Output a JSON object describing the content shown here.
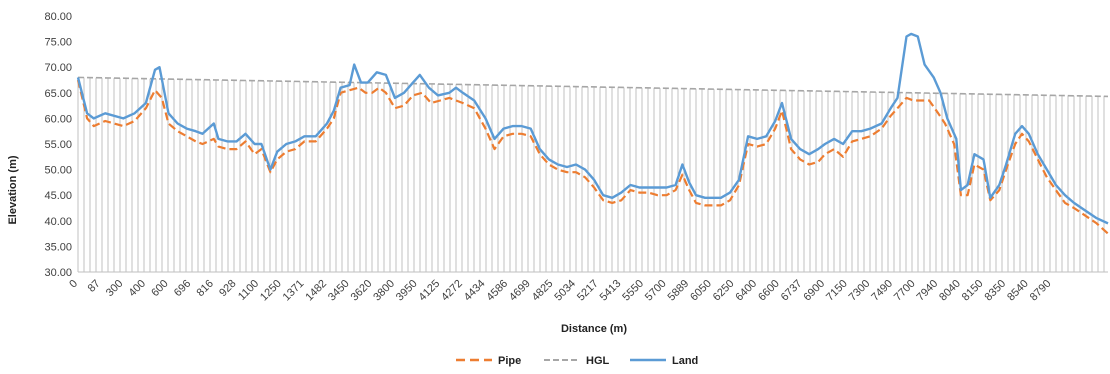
{
  "chart_data": {
    "type": "line",
    "xlabel": "Distance (m)",
    "ylabel": "Elevation (m)",
    "ylim": [
      30,
      80
    ],
    "yticks": [
      "30.00",
      "35.00",
      "40.00",
      "45.00",
      "50.00",
      "55.00",
      "60.00",
      "65.00",
      "70.00",
      "75.00",
      "80.00"
    ],
    "grid": false,
    "legend_position": "bottom",
    "hgl_fill": "vertical hatch from HGL down to axis",
    "x_labels": [
      "0",
      "87",
      "300",
      "400",
      "600",
      "696",
      "816",
      "928",
      "1100",
      "1250",
      "1371",
      "1482",
      "3450",
      "3620",
      "3800",
      "3950",
      "4125",
      "4272",
      "4434",
      "4586",
      "4699",
      "4825",
      "5034",
      "5217",
      "5413",
      "5550",
      "5700",
      "5889",
      "6050",
      "6250",
      "6400",
      "6600",
      "6737",
      "6900",
      "7150",
      "7300",
      "7490",
      "7700",
      "7940",
      "8040",
      "8150",
      "8350",
      "8540",
      "8790"
    ],
    "series": [
      {
        "name": "Pipe",
        "color": "#ED7D31",
        "style": "dashed",
        "points": [
          [
            0,
            67.5
          ],
          [
            0.4,
            60
          ],
          [
            0.7,
            58.5
          ],
          [
            1.2,
            59.5
          ],
          [
            2,
            58.5
          ],
          [
            2.5,
            59.5
          ],
          [
            3,
            62
          ],
          [
            3.4,
            65.5
          ],
          [
            3.7,
            64
          ],
          [
            4,
            59
          ],
          [
            4.4,
            57.5
          ],
          [
            4.8,
            56.5
          ],
          [
            5.2,
            55.5
          ],
          [
            5.5,
            55
          ],
          [
            6,
            56
          ],
          [
            6.2,
            54.5
          ],
          [
            6.6,
            54
          ],
          [
            7,
            54
          ],
          [
            7.4,
            55.5
          ],
          [
            7.8,
            53
          ],
          [
            8.1,
            54
          ],
          [
            8.5,
            49.5
          ],
          [
            8.8,
            52
          ],
          [
            9.2,
            53.5
          ],
          [
            9.6,
            54
          ],
          [
            10,
            55.5
          ],
          [
            10.5,
            55.5
          ],
          [
            11,
            58
          ],
          [
            11.3,
            60
          ],
          [
            11.6,
            65
          ],
          [
            12,
            65.5
          ],
          [
            12.4,
            66
          ],
          [
            12.7,
            65
          ],
          [
            13,
            65
          ],
          [
            13.3,
            66
          ],
          [
            13.6,
            65
          ],
          [
            14,
            62
          ],
          [
            14.4,
            62.5
          ],
          [
            14.8,
            64.5
          ],
          [
            15.2,
            65
          ],
          [
            15.6,
            63
          ],
          [
            16,
            63.5
          ],
          [
            16.4,
            64
          ],
          [
            16.7,
            63.5
          ],
          [
            17,
            63
          ],
          [
            17.5,
            62
          ],
          [
            18,
            58
          ],
          [
            18.4,
            54
          ],
          [
            18.8,
            56.5
          ],
          [
            19.2,
            57
          ],
          [
            19.6,
            57
          ],
          [
            20,
            56.5
          ],
          [
            20.4,
            53
          ],
          [
            20.8,
            51
          ],
          [
            21.2,
            50
          ],
          [
            21.6,
            49.5
          ],
          [
            22,
            49.5
          ],
          [
            22.4,
            48.5
          ],
          [
            22.8,
            46.5
          ],
          [
            23.2,
            44
          ],
          [
            23.6,
            43.5
          ],
          [
            24,
            44
          ],
          [
            24.4,
            46
          ],
          [
            24.8,
            45.5
          ],
          [
            25.2,
            45.5
          ],
          [
            25.6,
            45
          ],
          [
            26,
            45
          ],
          [
            26.4,
            46
          ],
          [
            26.7,
            49
          ],
          [
            27,
            46
          ],
          [
            27.3,
            43.5
          ],
          [
            27.7,
            43
          ],
          [
            28,
            43
          ],
          [
            28.4,
            43
          ],
          [
            28.8,
            44
          ],
          [
            29.2,
            47
          ],
          [
            29.6,
            55
          ],
          [
            30,
            54.5
          ],
          [
            30.4,
            55
          ],
          [
            30.8,
            58
          ],
          [
            31.1,
            61.5
          ],
          [
            31.5,
            54
          ],
          [
            31.9,
            52
          ],
          [
            32.3,
            51
          ],
          [
            32.7,
            51.5
          ],
          [
            33,
            53
          ],
          [
            33.4,
            54
          ],
          [
            33.8,
            52.5
          ],
          [
            34.2,
            55.5
          ],
          [
            34.6,
            56
          ],
          [
            35,
            56.5
          ],
          [
            35.5,
            58
          ],
          [
            35.9,
            60.5
          ],
          [
            36.2,
            62
          ],
          [
            36.6,
            64
          ],
          [
            36.9,
            63.5
          ],
          [
            37.2,
            63.5
          ],
          [
            37.6,
            63.5
          ],
          [
            38,
            61
          ],
          [
            38.3,
            59
          ],
          [
            38.7,
            55
          ],
          [
            39,
            45
          ],
          [
            39.3,
            45
          ],
          [
            39.6,
            51
          ],
          [
            40,
            50
          ],
          [
            40.3,
            44
          ],
          [
            40.7,
            46
          ],
          [
            41,
            50
          ],
          [
            41.4,
            55
          ],
          [
            41.7,
            57
          ],
          [
            42,
            55.5
          ],
          [
            42.4,
            52
          ],
          [
            42.8,
            48.5
          ],
          [
            43.2,
            46
          ],
          [
            43.6,
            43.5
          ],
          [
            44,
            42.5
          ],
          [
            44.5,
            41
          ],
          [
            45,
            39.5
          ],
          [
            45.5,
            37.5
          ]
        ]
      },
      {
        "name": "HGL",
        "color": "#A6A6A6",
        "style": "dashed",
        "points": [
          [
            0,
            68
          ],
          [
            45.5,
            64.3
          ]
        ]
      },
      {
        "name": "Land",
        "color": "#5B9BD5",
        "style": "solid",
        "points": [
          [
            0,
            68
          ],
          [
            0.4,
            61
          ],
          [
            0.7,
            60
          ],
          [
            1.2,
            61
          ],
          [
            2,
            60
          ],
          [
            2.5,
            61
          ],
          [
            3,
            63
          ],
          [
            3.4,
            69.5
          ],
          [
            3.6,
            70
          ],
          [
            4,
            61
          ],
          [
            4.4,
            59
          ],
          [
            4.8,
            58
          ],
          [
            5.2,
            57.5
          ],
          [
            5.5,
            57
          ],
          [
            6,
            59
          ],
          [
            6.2,
            56
          ],
          [
            6.6,
            55.5
          ],
          [
            7,
            55.5
          ],
          [
            7.4,
            57
          ],
          [
            7.8,
            55
          ],
          [
            8.1,
            55
          ],
          [
            8.5,
            50
          ],
          [
            8.8,
            53.5
          ],
          [
            9.2,
            55
          ],
          [
            9.6,
            55.5
          ],
          [
            10,
            56.5
          ],
          [
            10.5,
            56.5
          ],
          [
            11,
            59
          ],
          [
            11.3,
            61.5
          ],
          [
            11.6,
            66
          ],
          [
            12,
            66.5
          ],
          [
            12.2,
            70.5
          ],
          [
            12.5,
            67
          ],
          [
            12.8,
            67
          ],
          [
            13.2,
            69
          ],
          [
            13.6,
            68.5
          ],
          [
            14,
            64
          ],
          [
            14.4,
            65
          ],
          [
            14.8,
            67
          ],
          [
            15.1,
            68.5
          ],
          [
            15.5,
            66
          ],
          [
            15.9,
            64.5
          ],
          [
            16.4,
            65
          ],
          [
            16.7,
            66
          ],
          [
            17,
            65
          ],
          [
            17.5,
            63.5
          ],
          [
            18,
            60
          ],
          [
            18.4,
            56
          ],
          [
            18.8,
            58
          ],
          [
            19.2,
            58.5
          ],
          [
            19.6,
            58.5
          ],
          [
            20,
            58
          ],
          [
            20.4,
            54
          ],
          [
            20.8,
            52
          ],
          [
            21.2,
            51
          ],
          [
            21.6,
            50.5
          ],
          [
            22,
            51
          ],
          [
            22.4,
            50
          ],
          [
            22.8,
            48
          ],
          [
            23.2,
            45
          ],
          [
            23.6,
            44.5
          ],
          [
            24,
            45.5
          ],
          [
            24.4,
            47
          ],
          [
            24.8,
            46.5
          ],
          [
            25.2,
            46.5
          ],
          [
            25.6,
            46.5
          ],
          [
            26,
            46.5
          ],
          [
            26.4,
            47
          ],
          [
            26.7,
            51
          ],
          [
            27,
            47.5
          ],
          [
            27.3,
            45
          ],
          [
            27.7,
            44.5
          ],
          [
            28,
            44.5
          ],
          [
            28.4,
            44.5
          ],
          [
            28.8,
            45.5
          ],
          [
            29.2,
            48
          ],
          [
            29.6,
            56.5
          ],
          [
            30,
            56
          ],
          [
            30.4,
            56.5
          ],
          [
            30.8,
            59.5
          ],
          [
            31.1,
            63
          ],
          [
            31.5,
            56
          ],
          [
            31.9,
            54
          ],
          [
            32.3,
            53
          ],
          [
            32.7,
            54
          ],
          [
            33,
            55
          ],
          [
            33.4,
            56
          ],
          [
            33.8,
            55
          ],
          [
            34.2,
            57.5
          ],
          [
            34.6,
            57.5
          ],
          [
            35,
            58
          ],
          [
            35.5,
            59
          ],
          [
            35.9,
            62
          ],
          [
            36.2,
            64
          ],
          [
            36.6,
            76
          ],
          [
            36.8,
            76.5
          ],
          [
            37.1,
            76
          ],
          [
            37.4,
            70.5
          ],
          [
            37.8,
            68
          ],
          [
            38.1,
            65
          ],
          [
            38.4,
            60
          ],
          [
            38.8,
            56
          ],
          [
            39,
            46
          ],
          [
            39.3,
            47
          ],
          [
            39.6,
            53
          ],
          [
            40,
            52
          ],
          [
            40.3,
            44.5
          ],
          [
            40.7,
            47
          ],
          [
            41,
            51
          ],
          [
            41.4,
            57
          ],
          [
            41.7,
            58.5
          ],
          [
            42,
            57
          ],
          [
            42.4,
            53
          ],
          [
            42.8,
            50
          ],
          [
            43.2,
            47
          ],
          [
            43.6,
            45
          ],
          [
            44,
            43.5
          ],
          [
            44.5,
            42
          ],
          [
            45,
            40.5
          ],
          [
            45.5,
            39.5
          ]
        ]
      }
    ]
  }
}
